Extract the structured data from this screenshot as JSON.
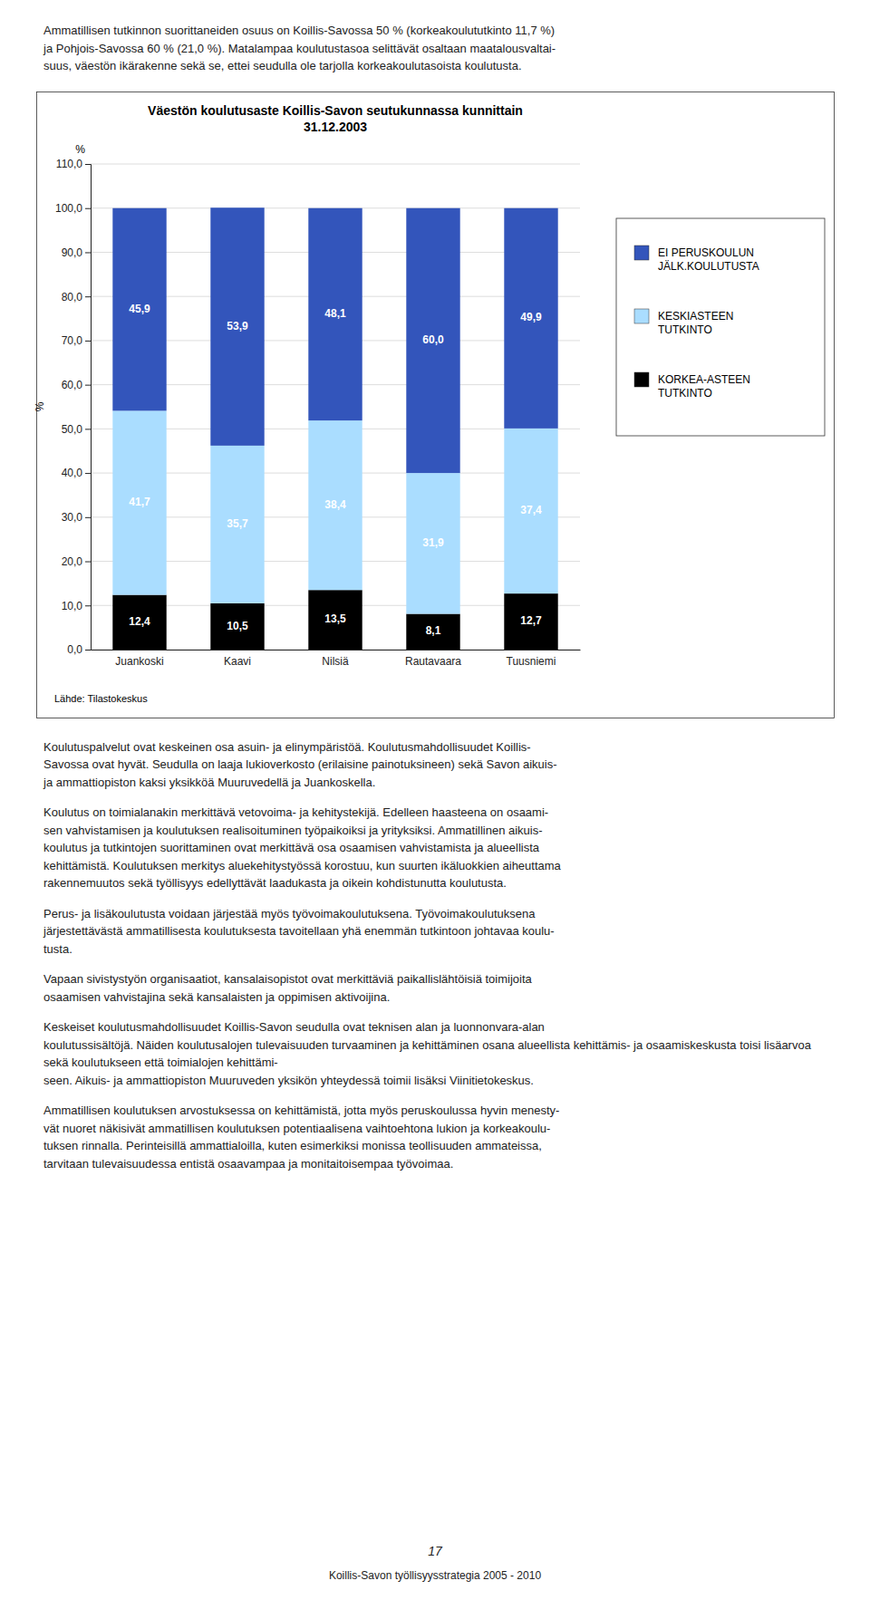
{
  "chart_data": {
    "type": "bar",
    "stacked": true,
    "title": "Väestön koulutusaste Koillis-Savon seutukunnassa kunnittain\n31.12.2003",
    "y_label": "%",
    "annotations": [
      "%"
    ],
    "source": "Lähde: Tilastokeskus",
    "categories": [
      "Juankoski",
      "Kaavi",
      "Nilsiä",
      "Rautavaara",
      "Tuusniemi"
    ],
    "series": [
      {
        "name": "KORKEA-ASTEEN\nTUTKINTO",
        "color": "#000000",
        "values": [
          12.4,
          10.5,
          13.5,
          8.1,
          12.7
        ],
        "value_labels": [
          "12,4",
          "10,5",
          "13,5",
          "8,1",
          "12,7"
        ]
      },
      {
        "name": "KESKIASTEEN\nTUTKINTO",
        "color": "#aaddff",
        "values": [
          41.7,
          35.7,
          38.4,
          31.9,
          37.4
        ],
        "value_labels": [
          "41,7",
          "35,7",
          "38,4",
          "31,9",
          "37,4"
        ]
      },
      {
        "name": "EI PERUSKOULUN\nJÄLK.KOULUTUSTA",
        "color": "#3355bb",
        "values": [
          45.9,
          53.9,
          48.1,
          60.0,
          49.9
        ],
        "value_labels": [
          "45,9",
          "53,9",
          "48,1",
          "60,0",
          "49,9"
        ]
      }
    ],
    "ylim": [
      0,
      110
    ],
    "yticks": [
      {
        "value": 0,
        "label": "0,0"
      },
      {
        "value": 10,
        "label": "10,0"
      },
      {
        "value": 20,
        "label": "20,0"
      },
      {
        "value": 30,
        "label": "30,0"
      },
      {
        "value": 40,
        "label": "40,0"
      },
      {
        "value": 50,
        "label": "50,0"
      },
      {
        "value": 60,
        "label": "60,0"
      },
      {
        "value": 70,
        "label": "70,0"
      },
      {
        "value": 80,
        "label": "80,0"
      },
      {
        "value": 90,
        "label": "90,0"
      },
      {
        "value": 100,
        "label": "100,0"
      },
      {
        "value": 110,
        "label": "110,0"
      }
    ],
    "grid": true,
    "legend": "right",
    "data_labels": true
  },
  "page": {
    "intro": "Ammatillisen tutkinnon suorittaneiden osuus on Koillis-Savossa 50 % (korkeakoulututkinto 11,7 %)\nja Pohjois-Savossa 60 % (21,0 %). Matalampaa koulutustasoa selittävät osaltaan maatalousvaltai-\nsuus, väestön ikärakenne sekä se, ettei seudulla ole tarjolla korkeakoulutasoista koulutusta.",
    "paragraphs": [
      "Koulutuspalvelut ovat keskeinen osa asuin- ja elinympäristöä. Koulutusmahdollisuudet Koillis-\nSavossa ovat hyvät. Seudulla on laaja lukioverkosto (erilaisine painotuksineen) sekä Savon aikuis-\nja ammattiopiston kaksi yksikköä Muuruvedellä ja Juankoskella.",
      "Koulutus on toimialanakin merkittävä vetovoima- ja kehitystekijä. Edelleen haasteena on osaami-\nsen vahvistamisen ja koulutuksen realisoituminen työpaikoiksi ja yrityksiksi. Ammatillinen aikuis-\nkoulutus ja tutkintojen suorittaminen ovat merkittävä osa osaamisen vahvistamista ja alueellista\nkehittämistä. Koulutuksen merkitys aluekehitystyössä korostuu, kun suurten ikäluokkien aiheuttama\nrakennemuutos sekä työllisyys edellyttävät laadukasta ja oikein kohdistunutta koulutusta.",
      "Perus- ja lisäkoulutusta voidaan järjestää myös työvoimakoulutuksena. Työvoimakoulutuksena\njärjestettävästä ammatillisesta koulutuksesta tavoitellaan yhä enemmän tutkintoon johtavaa koulu-\ntusta.",
      "Vapaan sivistystyön organisaatiot, kansalaisopistot ovat merkittäviä paikallislähtöisiä toimijoita\nosaamisen vahvistajina sekä kansalaisten ja oppimisen aktivoijina.",
      "Keskeiset koulutusmahdollisuudet Koillis-Savon seudulla ovat teknisen alan ja luonnonvara-alan\nkoulutussisältöjä. Näiden koulutusalojen tulevaisuuden turvaaminen ja kehittäminen osana alueellista kehittämis- ja osaamiskeskusta toisi lisäarvoa sekä koulutukseen että toimialojen kehittämi-\nseen. Aikuis- ja ammattiopiston Muuruveden yksikön yhteydessä toimii lisäksi Viinitietokeskus.",
      "Ammatillisen koulutuksen arvostuksessa on kehittämistä, jotta myös peruskoulussa hyvin menesty-\nvät nuoret näkisivät ammatillisen koulutuksen potentiaalisena vaihtoehtona lukion ja korkeakoulu-\ntuksen rinnalla. Perinteisillä ammattialoilla, kuten esimerkiksi monissa teollisuuden ammateissa,\ntarvitaan tulevaisuudessa entistä osaavampaa ja monitaitoisempaa työvoimaa."
    ],
    "page_number": "17",
    "footer": "Koillis-Savon työllisyysstrategia 2005 - 2010"
  }
}
